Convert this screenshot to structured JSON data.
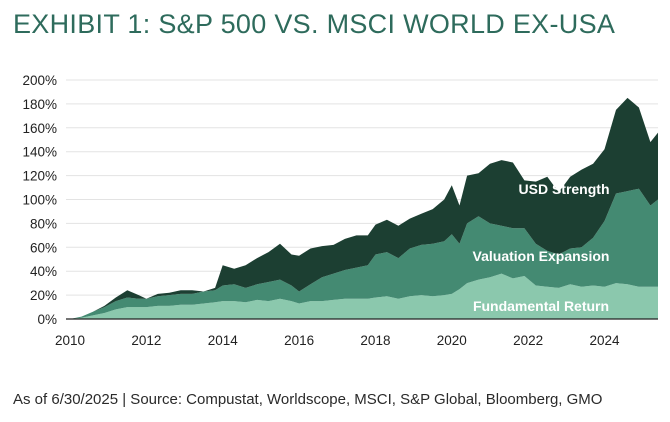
{
  "title": "EXHIBIT 1: S&P 500 VS. MSCI WORLD EX-USA",
  "source": "As of 6/30/2025 | Source: Compustat, Worldscope, MSCI, S&P Global, Bloomberg, GMO",
  "colors": {
    "title": "#2e6b5c",
    "fundamental": "#8bc8ad",
    "valuation": "#448a72",
    "usd": "#1c3f32",
    "grid": "#e3e3e3",
    "axis": "#222222"
  },
  "chart_data": {
    "type": "area",
    "stacked": true,
    "xlim": [
      2010,
      2025.4
    ],
    "ylim": [
      0,
      200
    ],
    "x_ticks": [
      2010,
      2012,
      2014,
      2016,
      2018,
      2020,
      2022,
      2024
    ],
    "x_tick_labels": [
      "2010",
      "2012",
      "2014",
      "2016",
      "2018",
      "2020",
      "2022",
      "2024"
    ],
    "y_ticks": [
      0,
      20,
      40,
      60,
      80,
      100,
      120,
      140,
      160,
      180,
      200
    ],
    "y_tick_labels": [
      "0%",
      "20%",
      "40%",
      "60%",
      "80%",
      "100%",
      "120%",
      "140%",
      "160%",
      "180%",
      "200%"
    ],
    "grid": true,
    "x": [
      2010.0,
      2010.3,
      2010.6,
      2010.9,
      2011.2,
      2011.5,
      2011.8,
      2012.0,
      2012.3,
      2012.6,
      2012.9,
      2013.2,
      2013.5,
      2013.8,
      2014.0,
      2014.3,
      2014.6,
      2014.9,
      2015.2,
      2015.5,
      2015.8,
      2016.0,
      2016.3,
      2016.6,
      2016.9,
      2017.2,
      2017.5,
      2017.8,
      2018.0,
      2018.3,
      2018.6,
      2018.9,
      2019.2,
      2019.5,
      2019.8,
      2020.0,
      2020.2,
      2020.4,
      2020.7,
      2021.0,
      2021.3,
      2021.6,
      2021.9,
      2022.2,
      2022.5,
      2022.8,
      2023.1,
      2023.4,
      2023.7,
      2024.0,
      2024.3,
      2024.6,
      2024.9,
      2025.2,
      2025.4
    ],
    "series": [
      {
        "name": "Fundamental Return",
        "values": [
          0,
          1,
          3,
          5,
          8,
          10,
          10,
          10,
          11,
          11,
          12,
          12,
          13,
          14,
          15,
          15,
          14,
          16,
          15,
          17,
          15,
          13,
          15,
          15,
          16,
          17,
          17,
          17,
          18,
          19,
          17,
          19,
          20,
          19,
          20,
          21,
          25,
          30,
          33,
          35,
          38,
          34,
          36,
          28,
          27,
          26,
          29,
          27,
          28,
          27,
          30,
          29,
          27,
          27,
          27
        ]
      },
      {
        "name": "Valuation Expansion",
        "values": [
          0,
          1,
          3,
          5,
          7,
          8,
          7,
          7,
          8,
          9,
          9,
          9,
          10,
          10,
          13,
          14,
          12,
          13,
          16,
          16,
          13,
          10,
          14,
          20,
          22,
          24,
          26,
          28,
          36,
          37,
          34,
          40,
          42,
          44,
          45,
          50,
          38,
          50,
          53,
          45,
          40,
          42,
          40,
          35,
          30,
          28,
          30,
          33,
          40,
          55,
          75,
          78,
          82,
          68,
          73
        ]
      },
      {
        "name": "USD Strength",
        "values": [
          0,
          0,
          0,
          1,
          3,
          6,
          3,
          0,
          2,
          2,
          3,
          3,
          0,
          2,
          17,
          13,
          19,
          22,
          25,
          30,
          26,
          30,
          30,
          26,
          24,
          26,
          27,
          25,
          25,
          27,
          27,
          25,
          26,
          29,
          35,
          41,
          32,
          40,
          36,
          50,
          55,
          55,
          40,
          52,
          62,
          52,
          60,
          65,
          62,
          60,
          70,
          78,
          68,
          53,
          56
        ]
      }
    ],
    "annotations": [
      "USD Strength",
      "Valuation Expansion",
      "Fundamental Return"
    ]
  }
}
